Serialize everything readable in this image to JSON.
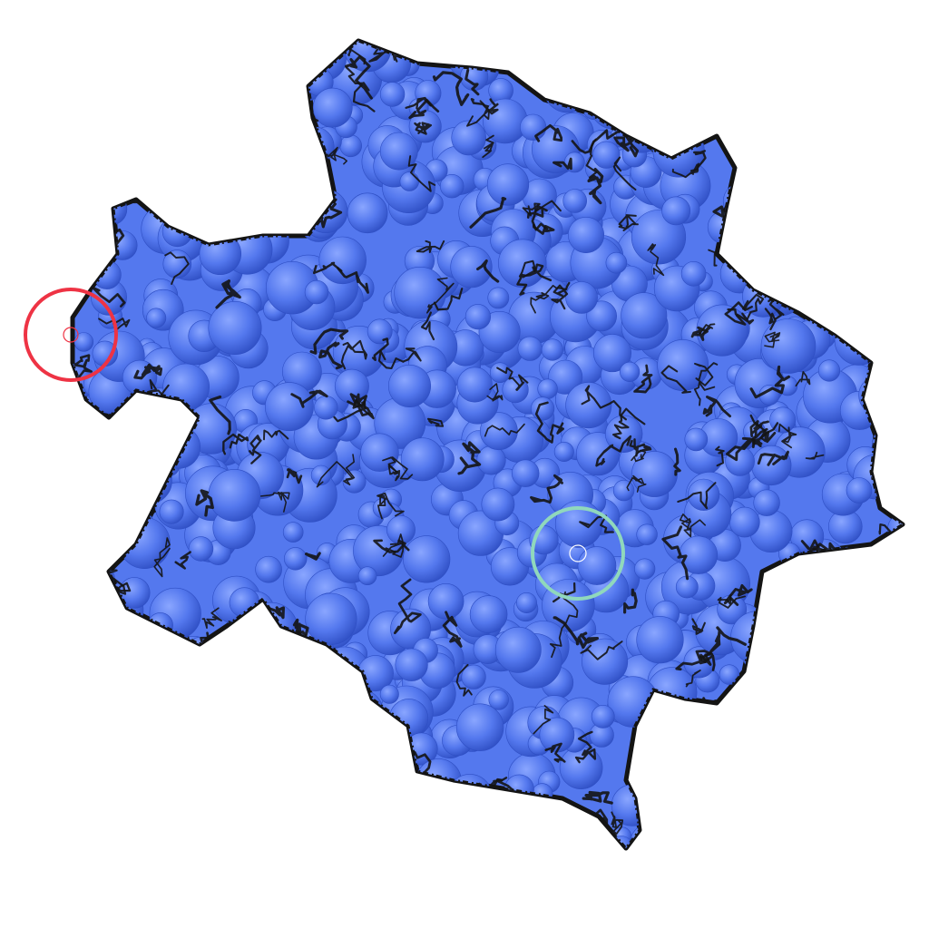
{
  "scene": {
    "subject": "molecular-surface",
    "colors": {
      "background": "#ffffff",
      "sphere": "#5478ee",
      "sphere_light": "#8aa6ff",
      "sphere_dark": "#2f4fc4",
      "backbone": "#141414",
      "marker_red": "#ee3344",
      "marker_green": "#90d8bc"
    },
    "markers": [
      {
        "name": "red-marker",
        "color": "#ee3344"
      },
      {
        "name": "green-marker",
        "color": "#90d8bc"
      }
    ]
  }
}
